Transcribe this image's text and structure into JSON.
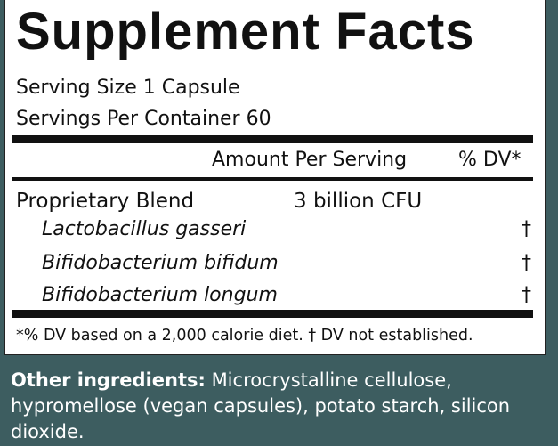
{
  "header": {
    "title": "Supplement Facts",
    "serving_size": "Serving Size 1 Capsule",
    "servings_per_container": "Servings Per Container 60"
  },
  "table": {
    "column_headers": [
      "Amount Per Serving",
      "% DV*"
    ],
    "blend": {
      "name": "Proprietary Blend",
      "amount": "3 billion CFU"
    },
    "rows": [
      [
        "Lactobacillus gasseri",
        "†"
      ],
      [
        "Bifidobacterium bifidum",
        "†"
      ],
      [
        "Bifidobacterium longum",
        "†"
      ]
    ]
  },
  "footnote": "*% DV based on a 2,000 calorie diet. † DV not established.",
  "other_ingredients": {
    "label": "Other ingredients:",
    "lines": [
      " Microcrystalline cellulose,",
      "hypromellose (vegan capsules), potato starch, silicon",
      "dioxide."
    ]
  }
}
